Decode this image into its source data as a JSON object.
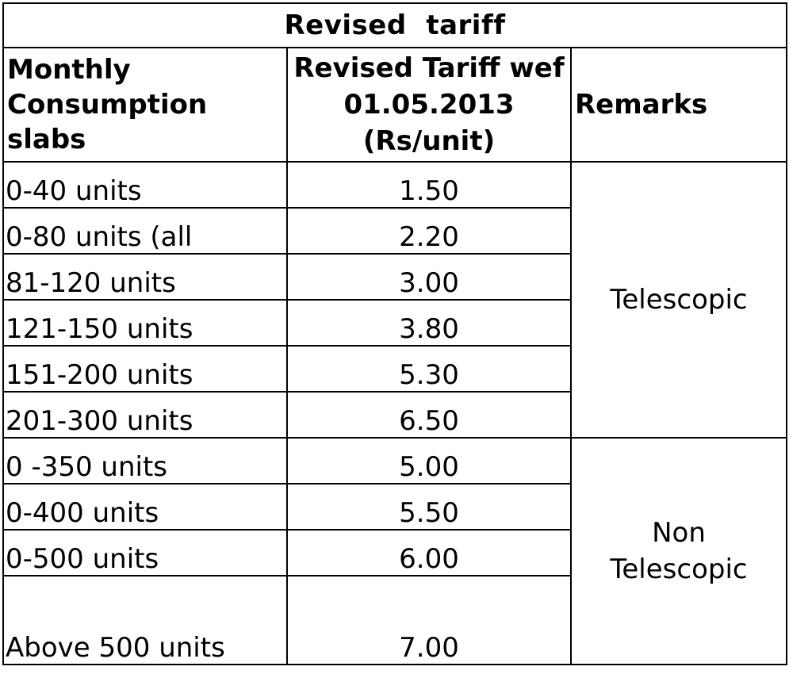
{
  "title": "Revised  tariff",
  "headers": {
    "slab_line1": "Monthly",
    "slab_line2": "Consumption slabs",
    "rate_line1": "Revised Tariff wef",
    "rate_line2": "01.05.2013",
    "rate_line3": "(Rs/unit)",
    "remarks": "Remarks"
  },
  "rows": [
    {
      "slab": "0-40 units",
      "rate": "1.50"
    },
    {
      "slab": "0-80 units (all",
      "rate": "2.20"
    },
    {
      "slab": "81-120 units",
      "rate": "3.00"
    },
    {
      "slab": "121-150 units",
      "rate": "3.80"
    },
    {
      "slab": "151-200 units",
      "rate": "5.30"
    },
    {
      "slab": "201-300 units",
      "rate": "6.50"
    },
    {
      "slab": "0 -350 units",
      "rate": "5.00"
    },
    {
      "slab": "0-400 units",
      "rate": "5.50"
    },
    {
      "slab": "0-500 units",
      "rate": "6.00"
    },
    {
      "slab": "Above 500 units",
      "rate": "7.00"
    }
  ],
  "remarks": {
    "telescopic": "Telescopic",
    "non_telescopic_line1": "Non",
    "non_telescopic_line2": "Telescopic"
  }
}
